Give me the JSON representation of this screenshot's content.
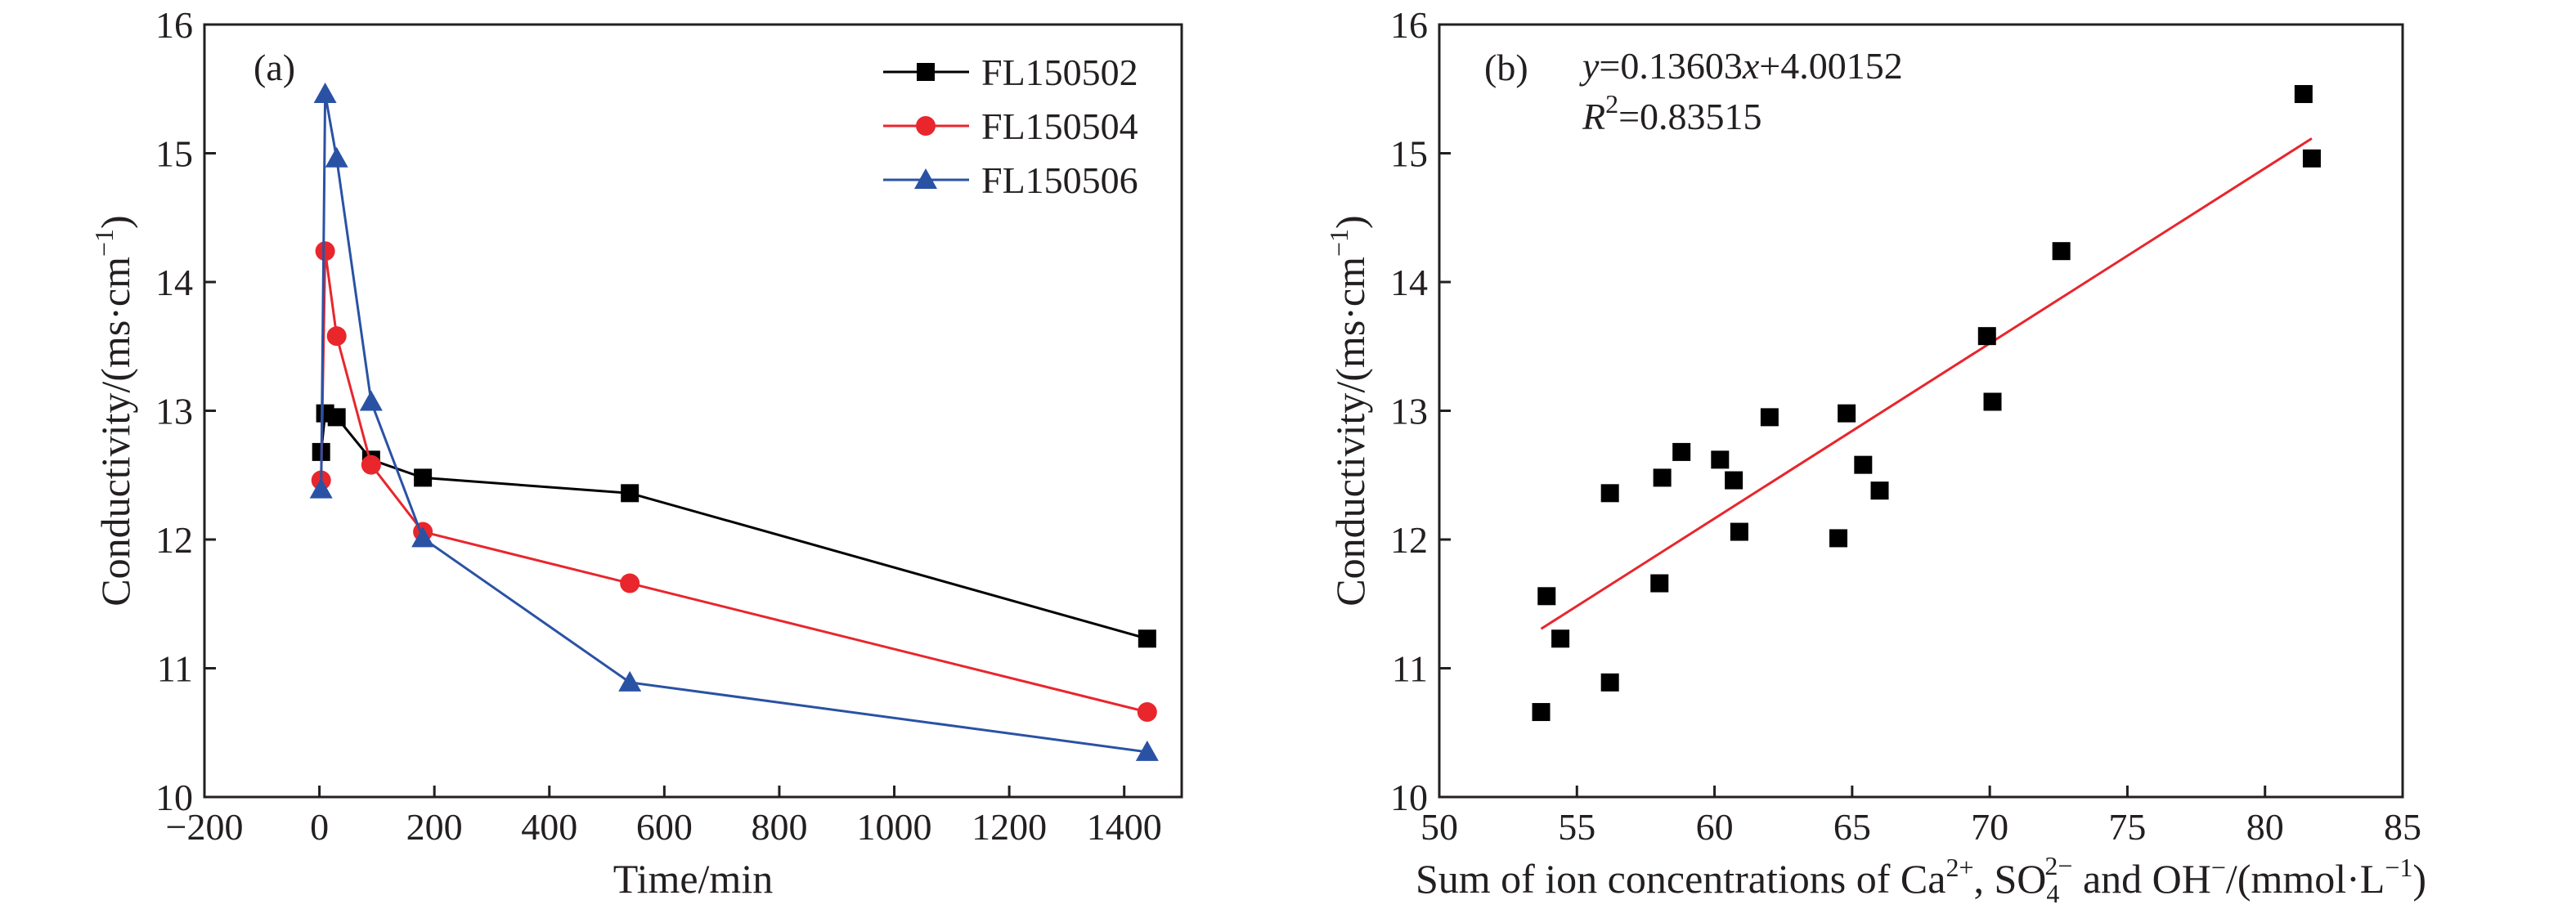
{
  "chart_data": [
    {
      "panel": "(a)",
      "type": "line",
      "title": "",
      "xlabel": "Time/min",
      "ylabel": "Conductivity/(ms·cm⁻¹)",
      "xlim": [
        -200,
        1500
      ],
      "ylim": [
        10,
        16
      ],
      "xticks": [
        "−200",
        "0",
        "200",
        "400",
        "600",
        "800",
        "1000",
        "1200",
        "1400"
      ],
      "yticks": [
        "10",
        "11",
        "12",
        "13",
        "14",
        "15",
        "16"
      ],
      "legend_position": "top-right",
      "series": [
        {
          "name": "FL150502",
          "color": "#000000",
          "marker": "square",
          "x": [
            3,
            10,
            30,
            90,
            180,
            540,
            1440
          ],
          "y": [
            12.68,
            12.98,
            12.95,
            12.62,
            12.48,
            12.36,
            11.23
          ]
        },
        {
          "name": "FL150504",
          "color": "#e8262c",
          "marker": "circle",
          "x": [
            3,
            10,
            30,
            90,
            180,
            540,
            1440
          ],
          "y": [
            12.46,
            14.24,
            13.58,
            12.58,
            12.06,
            11.66,
            10.66
          ]
        },
        {
          "name": "FL150506",
          "color": "#2a52a4",
          "marker": "triangle",
          "x": [
            3,
            10,
            30,
            90,
            180,
            540,
            1440
          ],
          "y": [
            12.39,
            15.46,
            14.96,
            13.07,
            12.01,
            10.89,
            10.35
          ]
        }
      ]
    },
    {
      "panel": "(b)",
      "type": "scatter",
      "title": "",
      "xlabel": "Sum of ion concentrations of Ca²⁺, SO₄²⁻ and OH⁻/(mmol·L⁻¹)",
      "ylabel": "Conductivity/(ms·cm⁻¹)",
      "xlim": [
        50,
        85
      ],
      "ylim": [
        10,
        16
      ],
      "xticks": [
        "50",
        "55",
        "60",
        "65",
        "70",
        "75",
        "80",
        "85"
      ],
      "yticks": [
        "10",
        "11",
        "12",
        "13",
        "14",
        "15",
        "16"
      ],
      "equation": "y=0.13603x+4.00152",
      "r_squared": "R²=0.83515",
      "fit": {
        "slope": 0.13603,
        "intercept": 4.00152,
        "x_range": [
          53.7,
          81.7
        ],
        "color": "#e8262c"
      },
      "marker_color": "#000000",
      "points": [
        {
          "x": 53.7,
          "y": 10.66
        },
        {
          "x": 53.9,
          "y": 11.56
        },
        {
          "x": 54.4,
          "y": 11.23
        },
        {
          "x": 56.2,
          "y": 12.36
        },
        {
          "x": 56.2,
          "y": 10.89
        },
        {
          "x": 58.0,
          "y": 11.66
        },
        {
          "x": 58.1,
          "y": 12.48
        },
        {
          "x": 58.8,
          "y": 12.68
        },
        {
          "x": 60.2,
          "y": 12.62
        },
        {
          "x": 60.7,
          "y": 12.46
        },
        {
          "x": 60.9,
          "y": 12.06
        },
        {
          "x": 62.0,
          "y": 12.95
        },
        {
          "x": 64.5,
          "y": 12.01
        },
        {
          "x": 64.8,
          "y": 12.98
        },
        {
          "x": 65.4,
          "y": 12.58
        },
        {
          "x": 66.0,
          "y": 12.38
        },
        {
          "x": 69.9,
          "y": 13.58
        },
        {
          "x": 70.1,
          "y": 13.07
        },
        {
          "x": 72.6,
          "y": 14.24
        },
        {
          "x": 81.4,
          "y": 15.46
        },
        {
          "x": 81.7,
          "y": 14.96
        }
      ]
    }
  ]
}
